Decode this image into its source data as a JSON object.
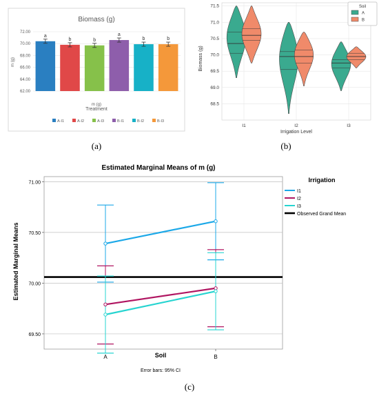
{
  "captions": [
    "(a)",
    "(b)",
    "(c)"
  ],
  "chart_data": [
    {
      "type": "bar",
      "title": "Biomass (g)",
      "xlabel": "Treatment",
      "ylabel": "m (g)",
      "sub_xlabel": "m (g)",
      "ylim": [
        62.0,
        72.0
      ],
      "yticks": [
        "62.00",
        "64.00",
        "66.00",
        "68.00",
        "70.00",
        "72.00"
      ],
      "categories": [
        "A-I1",
        "A-I2",
        "A-I3",
        "B-I1",
        "B-I2",
        "B-I3"
      ],
      "values": [
        70.4,
        69.8,
        69.7,
        70.6,
        69.9,
        69.9
      ],
      "errors": [
        0.35,
        0.35,
        0.35,
        0.35,
        0.35,
        0.35
      ],
      "letters": [
        "a",
        "b",
        "b",
        "a",
        "b",
        "b"
      ],
      "colors": [
        "#2a7fc1",
        "#e04848",
        "#86c14a",
        "#8e5eab",
        "#17b1c7",
        "#f4983a"
      ],
      "grid": true,
      "legend": "bottom"
    },
    {
      "type": "violin",
      "xlabel": "Irrigation Level",
      "ylabel": "Biomass (g)",
      "ylim": [
        68.0,
        71.6
      ],
      "yticks": [
        "68.5",
        "69.0",
        "69.5",
        "70.0",
        "70.5",
        "71.0",
        "71.5"
      ],
      "categories": [
        "I1",
        "I2",
        "I3"
      ],
      "legend": {
        "title": "Soil",
        "entries": [
          "A",
          "B"
        ],
        "position": "top-right"
      },
      "colors": {
        "A": "#3aaa8f",
        "B": "#f08a6a"
      },
      "series": [
        {
          "name": "A",
          "min": [
            69.3,
            68.2,
            68.9
          ],
          "max": [
            71.5,
            71.0,
            70.4
          ],
          "q1": [
            70.05,
            69.55,
            69.6
          ],
          "median": [
            70.35,
            69.95,
            69.75
          ],
          "q3": [
            70.7,
            70.1,
            69.85
          ],
          "mode": [
            70.6,
            70.0,
            69.75
          ]
        },
        {
          "name": "B",
          "min": [
            69.75,
            69.05,
            69.6
          ],
          "max": [
            71.5,
            70.7,
            70.25
          ],
          "q1": [
            70.45,
            69.75,
            69.85
          ],
          "median": [
            70.6,
            69.95,
            69.95
          ],
          "q3": [
            70.8,
            70.15,
            70.05
          ],
          "mode": [
            70.65,
            70.05,
            69.95
          ]
        }
      ],
      "grid": true
    },
    {
      "type": "line",
      "title": "Estimated Marginal Means of m (g)",
      "xlabel": "Soil",
      "ylabel": "Estimated Marginal Means",
      "ylim": [
        69.35,
        71.05
      ],
      "yticks": [
        "69.50",
        "70.00",
        "70.50",
        "71.00"
      ],
      "categories": [
        "A",
        "B"
      ],
      "legend_title": "Irrigation",
      "series": [
        {
          "name": "I1",
          "values": [
            70.39,
            70.61
          ],
          "ci_low": [
            70.01,
            70.23
          ],
          "ci_high": [
            70.77,
            70.99
          ],
          "color": "#1ba8e8"
        },
        {
          "name": "I2",
          "values": [
            69.79,
            69.95
          ],
          "ci_low": [
            69.4,
            69.57
          ],
          "ci_high": [
            70.17,
            70.33
          ],
          "color": "#b01561"
        },
        {
          "name": "I3",
          "values": [
            69.69,
            69.92
          ],
          "ci_low": [
            69.31,
            69.54
          ],
          "ci_high": [
            70.07,
            70.3
          ],
          "color": "#26d4d0"
        }
      ],
      "grand_mean": {
        "label": "Observed Grand Mean",
        "value": 70.06,
        "color": "#000000"
      },
      "footnote": "Error bars: 95% CI"
    }
  ]
}
